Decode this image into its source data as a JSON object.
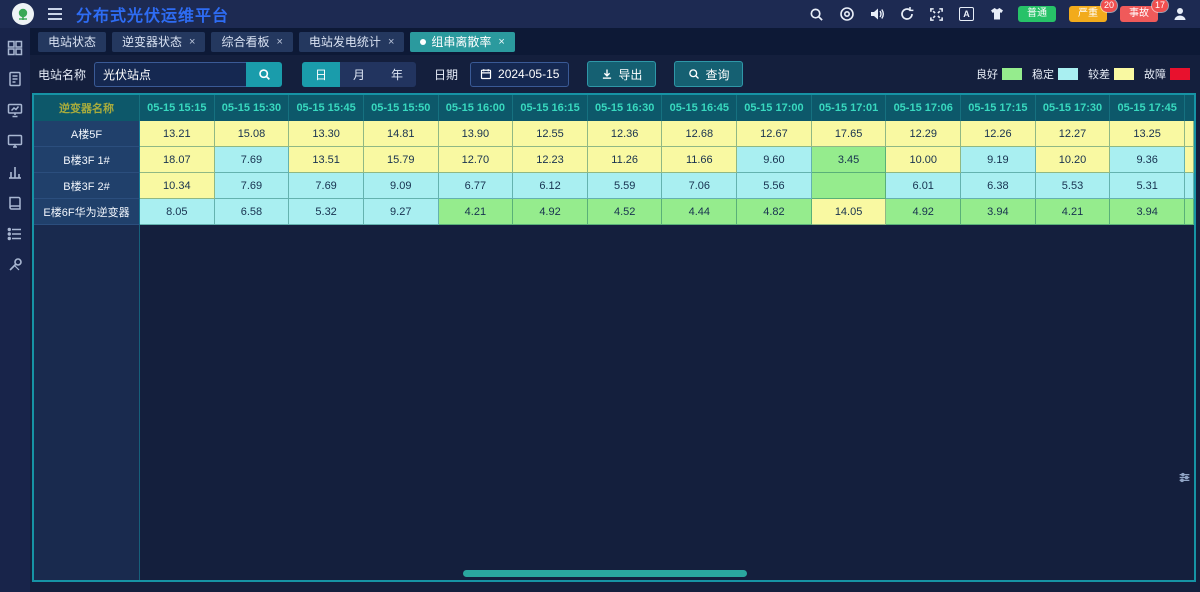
{
  "app": {
    "title": "分布式光伏运维平台"
  },
  "colors": {
    "accent_teal": "#1a9cab",
    "active_tab_teal": "#2b9a9e",
    "title_blue": "#2e6cf3",
    "table_header_bg": "#0d586a",
    "table_border": "#1693a5"
  },
  "header": {
    "icons": [
      "search-icon",
      "target-icon",
      "volume-icon",
      "refresh-icon",
      "fullscreen-icon",
      "translate-icon",
      "theme-icon",
      "user-icon"
    ],
    "alarm_badges": [
      {
        "label": "普通",
        "count": "",
        "color": "#27c268"
      },
      {
        "label": "严重",
        "count": "20",
        "color": "#f2ab1c"
      },
      {
        "label": "事故",
        "count": "17",
        "color": "#f05a5a"
      }
    ]
  },
  "sidebar": {
    "items": [
      "dashboard-grid-icon",
      "report-icon",
      "presentation-icon",
      "monitor-icon",
      "bar-chart-icon",
      "book-icon",
      "list-icon",
      "tools-icon"
    ]
  },
  "tabs": [
    {
      "label": "电站状态",
      "closable": false,
      "active": false
    },
    {
      "label": "逆变器状态",
      "closable": true,
      "active": false
    },
    {
      "label": "综合看板",
      "closable": true,
      "active": false
    },
    {
      "label": "电站发电统计",
      "closable": true,
      "active": false
    },
    {
      "label": "组串离散率",
      "closable": true,
      "active": true
    }
  ],
  "filters": {
    "station_label": "电站名称",
    "station_value": "光伏站点",
    "period_options": [
      "日",
      "月",
      "年"
    ],
    "period_active": "日",
    "date_label": "日期",
    "date_value": "2024-05-15",
    "export_label": "导出",
    "query_label": "查询"
  },
  "legend": [
    {
      "label": "良好",
      "color": "#95ec8d"
    },
    {
      "label": "稳定",
      "color": "#a9eff1"
    },
    {
      "label": "较差",
      "color": "#f9f9a2"
    },
    {
      "label": "故障",
      "color": "#e8112d"
    }
  ],
  "table": {
    "name_header": "逆变器名称",
    "time_columns": [
      "05-15 15:15",
      "05-15 15:30",
      "05-15 15:45",
      "05-15 15:50",
      "05-15 16:00",
      "05-15 16:15",
      "05-15 16:30",
      "05-15 16:45",
      "05-15 17:00",
      "05-15 17:01",
      "05-15 17:06",
      "05-15 17:15",
      "05-15 17:30",
      "05-15 17:45"
    ],
    "status_colors": {
      "good": "#95ec8d",
      "stable": "#a9eff1",
      "poor": "#f9f9a2",
      "fault": "#e8112d"
    },
    "rows": [
      {
        "name": "A楼5F",
        "cells": [
          {
            "v": "13.21",
            "s": "poor"
          },
          {
            "v": "15.08",
            "s": "poor"
          },
          {
            "v": "13.30",
            "s": "poor"
          },
          {
            "v": "14.81",
            "s": "poor"
          },
          {
            "v": "13.90",
            "s": "poor"
          },
          {
            "v": "12.55",
            "s": "poor"
          },
          {
            "v": "12.36",
            "s": "poor"
          },
          {
            "v": "12.68",
            "s": "poor"
          },
          {
            "v": "12.67",
            "s": "poor"
          },
          {
            "v": "17.65",
            "s": "poor"
          },
          {
            "v": "12.29",
            "s": "poor"
          },
          {
            "v": "12.26",
            "s": "poor"
          },
          {
            "v": "12.27",
            "s": "poor"
          },
          {
            "v": "13.25",
            "s": "poor"
          }
        ]
      },
      {
        "name": "B楼3F 1#",
        "cells": [
          {
            "v": "18.07",
            "s": "poor"
          },
          {
            "v": "7.69",
            "s": "stable"
          },
          {
            "v": "13.51",
            "s": "poor"
          },
          {
            "v": "15.79",
            "s": "poor"
          },
          {
            "v": "12.70",
            "s": "poor"
          },
          {
            "v": "12.23",
            "s": "poor"
          },
          {
            "v": "11.26",
            "s": "poor"
          },
          {
            "v": "11.66",
            "s": "poor"
          },
          {
            "v": "9.60",
            "s": "stable"
          },
          {
            "v": "3.45",
            "s": "good"
          },
          {
            "v": "10.00",
            "s": "poor"
          },
          {
            "v": "9.19",
            "s": "stable"
          },
          {
            "v": "10.20",
            "s": "poor"
          },
          {
            "v": "9.36",
            "s": "stable"
          }
        ]
      },
      {
        "name": "B楼3F 2#",
        "cells": [
          {
            "v": "10.34",
            "s": "poor"
          },
          {
            "v": "7.69",
            "s": "stable"
          },
          {
            "v": "7.69",
            "s": "stable"
          },
          {
            "v": "9.09",
            "s": "stable"
          },
          {
            "v": "6.77",
            "s": "stable"
          },
          {
            "v": "6.12",
            "s": "stable"
          },
          {
            "v": "5.59",
            "s": "stable"
          },
          {
            "v": "7.06",
            "s": "stable"
          },
          {
            "v": "5.56",
            "s": "stable"
          },
          {
            "v": "",
            "s": "good"
          },
          {
            "v": "6.01",
            "s": "stable"
          },
          {
            "v": "6.38",
            "s": "stable"
          },
          {
            "v": "5.53",
            "s": "stable"
          },
          {
            "v": "5.31",
            "s": "stable"
          }
        ]
      },
      {
        "name": "E楼6F华为逆变器",
        "cells": [
          {
            "v": "8.05",
            "s": "stable"
          },
          {
            "v": "6.58",
            "s": "stable"
          },
          {
            "v": "5.32",
            "s": "stable"
          },
          {
            "v": "9.27",
            "s": "stable"
          },
          {
            "v": "4.21",
            "s": "good"
          },
          {
            "v": "4.92",
            "s": "good"
          },
          {
            "v": "4.52",
            "s": "good"
          },
          {
            "v": "4.44",
            "s": "good"
          },
          {
            "v": "4.82",
            "s": "good"
          },
          {
            "v": "14.05",
            "s": "poor"
          },
          {
            "v": "4.92",
            "s": "good"
          },
          {
            "v": "3.94",
            "s": "good"
          },
          {
            "v": "4.21",
            "s": "good"
          },
          {
            "v": "3.94",
            "s": "good"
          }
        ]
      }
    ],
    "overflow_column": {
      "statuses": [
        "poor",
        "poor",
        "stable",
        "good"
      ]
    }
  }
}
